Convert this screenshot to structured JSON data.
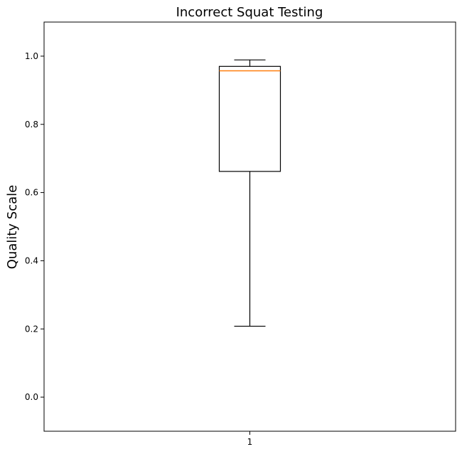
{
  "chart_data": {
    "type": "box",
    "title": "Incorrect Squat Testing",
    "xlabel": "",
    "ylabel": "Quality Scale",
    "ylim": [
      -0.1,
      1.1
    ],
    "y_ticks": [
      0.0,
      0.2,
      0.4,
      0.6,
      0.8,
      1.0
    ],
    "y_tick_labels": [
      "0.0",
      "0.2",
      "0.4",
      "0.6",
      "0.8",
      "1.0"
    ],
    "categories": [
      "1"
    ],
    "boxes": [
      {
        "category": "1",
        "whisker_low": 0.208,
        "q1": 0.662,
        "median": 0.957,
        "q3": 0.97,
        "whisker_high": 0.989
      }
    ],
    "grid": false,
    "colors": {
      "box": "#000000",
      "median": "#ff7f0e",
      "axes": "#000000"
    }
  }
}
